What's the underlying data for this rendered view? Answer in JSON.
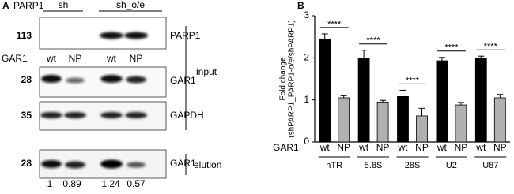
{
  "panel_a": {
    "label": "A",
    "header": "PARP1",
    "groups": [
      "sh",
      "sh_o/e"
    ],
    "lane_row_label": "GAR1",
    "lanes": [
      "wt",
      "NP",
      "wt",
      "NP"
    ],
    "blots": [
      {
        "size": 113,
        "protein": "PARP1"
      },
      {
        "size": 28,
        "protein": "GAR1"
      },
      {
        "size": 35,
        "protein": "GAPDH"
      },
      {
        "size": 28,
        "protein": "GAR1"
      }
    ],
    "sections": [
      "input",
      "elution"
    ],
    "quantification": [
      1,
      0.89,
      1.24,
      0.57
    ]
  },
  "chart_data": {
    "type": "bar",
    "label": "B",
    "ylabel": [
      "Fold change",
      "(shPARP1_PARP1-o/e/shPARP1)"
    ],
    "x_row_label": "GAR1",
    "categories": [
      "hTR",
      "5.8S",
      "28S",
      "U2",
      "U87"
    ],
    "series": [
      {
        "name": "wt",
        "color": "#000000",
        "values": [
          2.45,
          1.98,
          1.08,
          1.93,
          1.98
        ],
        "errors": [
          0.12,
          0.2,
          0.15,
          0.08,
          0.06
        ]
      },
      {
        "name": "NP",
        "color": "#b0b0b0",
        "values": [
          1.05,
          0.95,
          0.62,
          0.88,
          1.05
        ],
        "errors": [
          0.05,
          0.04,
          0.18,
          0.06,
          0.08
        ]
      }
    ],
    "annotations": [
      "****",
      "****",
      "****",
      "****",
      "****"
    ],
    "ylim": [
      0,
      3
    ],
    "yticks": [
      0,
      1,
      2,
      3
    ]
  }
}
